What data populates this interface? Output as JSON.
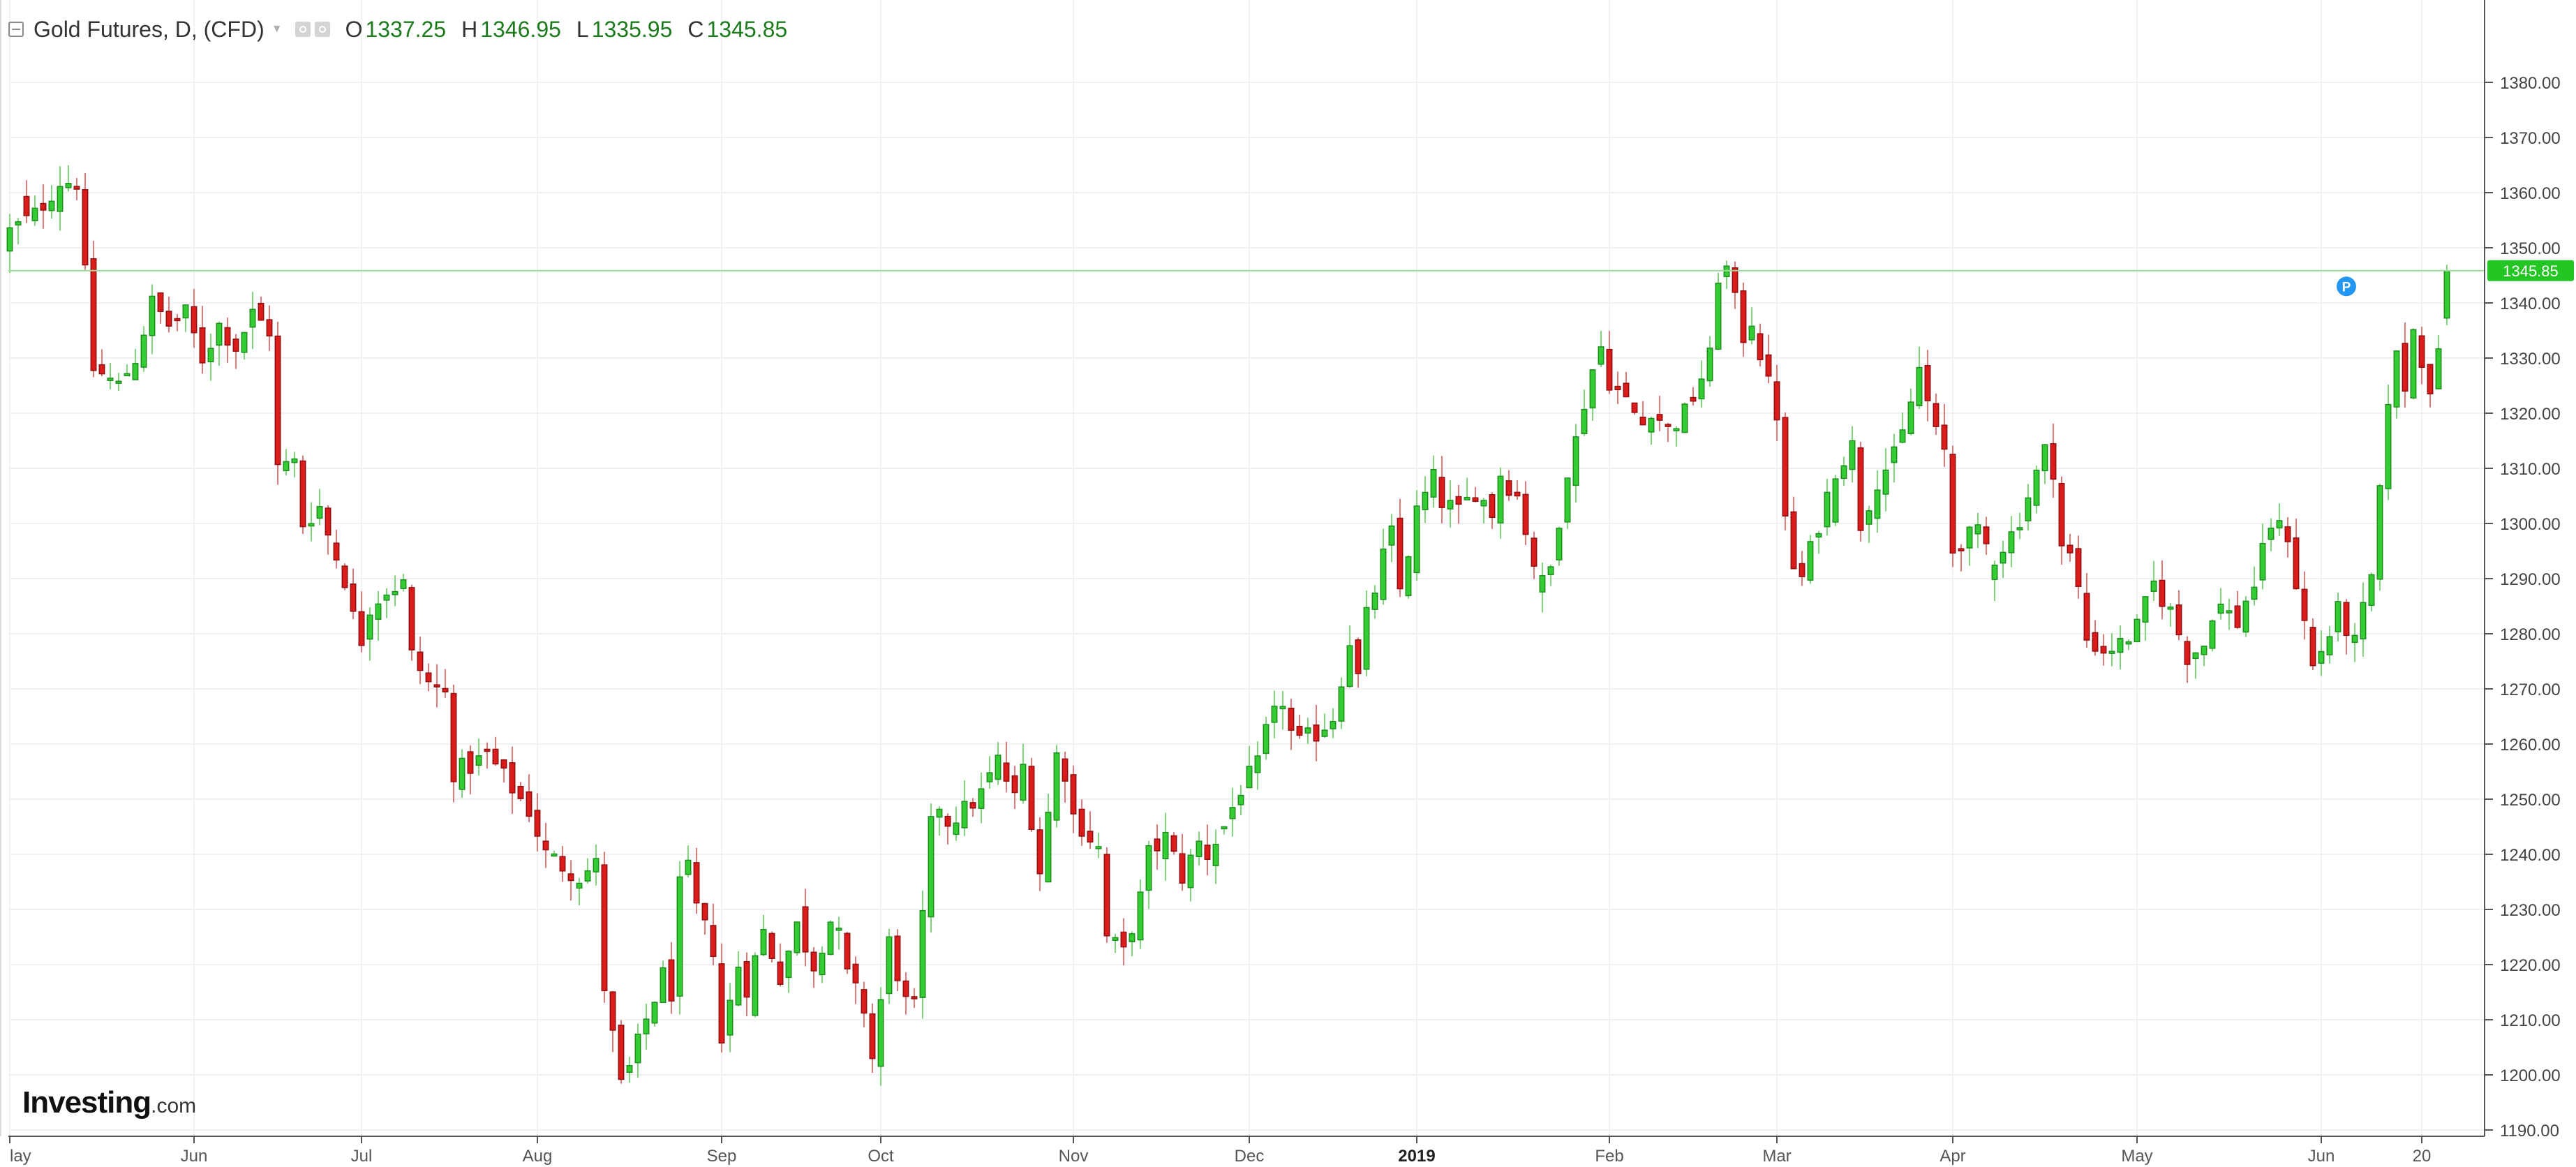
{
  "header": {
    "title": "Gold Futures, D, (CFD)",
    "open_label": "O",
    "open": "1337.25",
    "high_label": "H",
    "high": "1346.95",
    "low_label": "L",
    "low": "1335.95",
    "close_label": "C",
    "close": "1345.85"
  },
  "logo": {
    "brand": "Investing",
    "suffix": ".com"
  },
  "colors": {
    "up": "#33cc33",
    "down": "#dd1a1a",
    "current_line": "#9cdb9c",
    "price_tag": "#23c623",
    "marker": "#2196f3"
  },
  "chart_data": {
    "type": "candlestick",
    "instrument": "Gold Futures, D, (CFD)",
    "current_price": 1345.85,
    "current_price_label": "1345.85",
    "ylim": [
      1180,
      1380
    ],
    "y_ticks": [
      "1190.00",
      "1200.00",
      "1210.00",
      "1220.00",
      "1230.00",
      "1240.00",
      "1250.00",
      "1260.00",
      "1270.00",
      "1280.00",
      "1290.00",
      "1300.00",
      "1310.00",
      "1320.00",
      "1330.00",
      "1340.00",
      "1350.00",
      "1360.00",
      "1370.00",
      "1380.00"
    ],
    "y_tick_values": [
      1190,
      1200,
      1210,
      1220,
      1230,
      1240,
      1250,
      1260,
      1270,
      1280,
      1290,
      1300,
      1310,
      1320,
      1330,
      1340,
      1350,
      1360,
      1370,
      1380
    ],
    "x_ticks": [
      {
        "label": "lay",
        "index": 0
      },
      {
        "label": "Jun",
        "index": 22
      },
      {
        "label": "Jul",
        "index": 42
      },
      {
        "label": "Aug",
        "index": 63
      },
      {
        "label": "Sep",
        "index": 85
      },
      {
        "label": "Oct",
        "index": 104
      },
      {
        "label": "Nov",
        "index": 127
      },
      {
        "label": "Dec",
        "index": 148
      },
      {
        "label": "2019",
        "index": 168,
        "bold": true
      },
      {
        "label": "Feb",
        "index": 191
      },
      {
        "label": "Mar",
        "index": 211
      },
      {
        "label": "Apr",
        "index": 232
      },
      {
        "label": "May",
        "index": 254
      },
      {
        "label": "Jun",
        "index": 276
      },
      {
        "label": "20",
        "index": 288
      }
    ],
    "marker": {
      "label": "P",
      "index": 279,
      "value": 1343
    },
    "close_path": [
      [
        0,
        1353
      ],
      [
        3,
        1356
      ],
      [
        6,
        1362
      ],
      [
        8,
        1362
      ],
      [
        10,
        1328
      ],
      [
        13,
        1325
      ],
      [
        15,
        1330
      ],
      [
        17,
        1340
      ],
      [
        19,
        1336
      ],
      [
        21,
        1338
      ],
      [
        23,
        1330
      ],
      [
        25,
        1336
      ],
      [
        27,
        1332
      ],
      [
        29,
        1338
      ],
      [
        31,
        1335
      ],
      [
        32,
        1310
      ],
      [
        34,
        1311
      ],
      [
        35,
        1300
      ],
      [
        37,
        1303
      ],
      [
        38,
        1298
      ],
      [
        40,
        1290
      ],
      [
        41,
        1283
      ],
      [
        42,
        1279
      ],
      [
        43,
        1285
      ],
      [
        45,
        1288
      ],
      [
        47,
        1289
      ],
      [
        48,
        1276
      ],
      [
        50,
        1271
      ],
      [
        52,
        1269
      ],
      [
        53,
        1255
      ],
      [
        55,
        1256
      ],
      [
        57,
        1258
      ],
      [
        60,
        1252
      ],
      [
        62,
        1248
      ],
      [
        64,
        1240
      ],
      [
        66,
        1238
      ],
      [
        68,
        1236
      ],
      [
        70,
        1238
      ],
      [
        71,
        1216
      ],
      [
        73,
        1198
      ],
      [
        74,
        1201
      ],
      [
        76,
        1210
      ],
      [
        78,
        1218
      ],
      [
        79,
        1215
      ],
      [
        80,
        1234
      ],
      [
        81,
        1237
      ],
      [
        82,
        1230
      ],
      [
        84,
        1223
      ],
      [
        85,
        1206
      ],
      [
        87,
        1220
      ],
      [
        88,
        1216
      ],
      [
        90,
        1226
      ],
      [
        92,
        1218
      ],
      [
        94,
        1227
      ],
      [
        96,
        1220
      ],
      [
        98,
        1228
      ],
      [
        99,
        1225
      ],
      [
        100,
        1218
      ],
      [
        102,
        1212
      ],
      [
        103,
        1203
      ],
      [
        105,
        1224
      ],
      [
        107,
        1213
      ],
      [
        108,
        1212
      ],
      [
        110,
        1245
      ],
      [
        111,
        1249
      ],
      [
        112,
        1246
      ],
      [
        114,
        1248
      ],
      [
        116,
        1251
      ],
      [
        118,
        1257
      ],
      [
        120,
        1250
      ],
      [
        121,
        1256
      ],
      [
        123,
        1237
      ],
      [
        125,
        1258
      ],
      [
        126,
        1255
      ],
      [
        127,
        1247
      ],
      [
        129,
        1243
      ],
      [
        130,
        1241
      ],
      [
        131,
        1225
      ],
      [
        133,
        1222
      ],
      [
        135,
        1232
      ],
      [
        136,
        1240
      ],
      [
        138,
        1243
      ],
      [
        140,
        1236
      ],
      [
        142,
        1242
      ],
      [
        143,
        1240
      ],
      [
        145,
        1245
      ],
      [
        147,
        1252
      ],
      [
        149,
        1256
      ],
      [
        150,
        1262
      ],
      [
        152,
        1268
      ],
      [
        153,
        1262
      ],
      [
        154,
        1260
      ],
      [
        156,
        1262
      ],
      [
        158,
        1265
      ],
      [
        160,
        1279
      ],
      [
        161,
        1272
      ],
      [
        162,
        1283
      ],
      [
        163,
        1288
      ],
      [
        164,
        1294
      ],
      [
        165,
        1298
      ],
      [
        166,
        1288
      ],
      [
        168,
        1302
      ],
      [
        170,
        1308
      ],
      [
        171,
        1304
      ],
      [
        173,
        1302
      ],
      [
        175,
        1306
      ],
      [
        177,
        1302
      ],
      [
        178,
        1309
      ],
      [
        180,
        1305
      ],
      [
        182,
        1293
      ],
      [
        183,
        1289
      ],
      [
        184,
        1292
      ],
      [
        186,
        1310
      ],
      [
        187,
        1315
      ],
      [
        188,
        1322
      ],
      [
        189,
        1328
      ],
      [
        190,
        1332
      ],
      [
        191,
        1326
      ],
      [
        193,
        1322
      ],
      [
        195,
        1318
      ],
      [
        196,
        1321
      ],
      [
        198,
        1317
      ],
      [
        200,
        1320
      ],
      [
        201,
        1323
      ],
      [
        203,
        1330
      ],
      [
        204,
        1345
      ],
      [
        205,
        1346
      ],
      [
        206,
        1340
      ],
      [
        207,
        1334
      ],
      [
        208,
        1337
      ],
      [
        209,
        1331
      ],
      [
        210,
        1325
      ],
      [
        211,
        1320
      ],
      [
        212,
        1300
      ],
      [
        213,
        1292
      ],
      [
        214,
        1290
      ],
      [
        216,
        1300
      ],
      [
        218,
        1310
      ],
      [
        220,
        1314
      ],
      [
        221,
        1300
      ],
      [
        223,
        1308
      ],
      [
        225,
        1312
      ],
      [
        226,
        1316
      ],
      [
        228,
        1328
      ],
      [
        229,
        1322
      ],
      [
        230,
        1316
      ],
      [
        231,
        1313
      ],
      [
        232,
        1295
      ],
      [
        233,
        1297
      ],
      [
        235,
        1298
      ],
      [
        237,
        1294
      ],
      [
        239,
        1298
      ],
      [
        240,
        1301
      ],
      [
        241,
        1305
      ],
      [
        243,
        1313
      ],
      [
        244,
        1310
      ],
      [
        245,
        1296
      ],
      [
        246,
        1294
      ],
      [
        247,
        1288
      ],
      [
        248,
        1279
      ],
      [
        250,
        1277
      ],
      [
        252,
        1278
      ],
      [
        254,
        1281
      ],
      [
        256,
        1289
      ],
      [
        258,
        1284
      ],
      [
        260,
        1276
      ],
      [
        262,
        1278
      ],
      [
        263,
        1284
      ],
      [
        264,
        1285
      ],
      [
        266,
        1282
      ],
      [
        267,
        1286
      ],
      [
        268,
        1289
      ],
      [
        270,
        1300
      ],
      [
        272,
        1298
      ],
      [
        273,
        1289
      ],
      [
        274,
        1282
      ],
      [
        275,
        1274
      ],
      [
        277,
        1280
      ],
      [
        278,
        1284
      ],
      [
        279,
        1281
      ],
      [
        280,
        1278
      ],
      [
        281,
        1284
      ],
      [
        282,
        1290
      ],
      [
        283,
        1305
      ],
      [
        284,
        1323
      ],
      [
        285,
        1330
      ],
      [
        286,
        1325
      ],
      [
        287,
        1335
      ],
      [
        288,
        1330
      ],
      [
        289,
        1325
      ],
      [
        290,
        1330
      ],
      [
        291,
        1345.85
      ]
    ],
    "n_bars": 292
  }
}
